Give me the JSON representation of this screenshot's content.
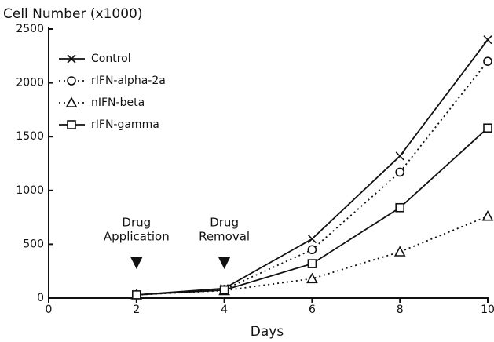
{
  "chart_data": {
    "type": "line",
    "title": "Cell Number (x1000)",
    "x_label": "Days",
    "x": [
      2,
      4,
      6,
      8,
      10
    ],
    "xlim": [
      0,
      10
    ],
    "xticks": [
      0,
      2,
      4,
      6,
      8,
      10
    ],
    "ylim": [
      0,
      2500
    ],
    "yticks": [
      0,
      500,
      1000,
      1500,
      2000,
      2500
    ],
    "grid": false,
    "legend": "upper-left",
    "series": [
      {
        "name": "Control",
        "color": "#111111",
        "marker": "x",
        "dash": "solid",
        "values": [
          30,
          90,
          550,
          1320,
          2400
        ]
      },
      {
        "name": "rIFN-alpha-2a",
        "color": "#111111",
        "marker": "circle",
        "dash": "dotted",
        "values": [
          30,
          80,
          450,
          1170,
          2200
        ]
      },
      {
        "name": "nIFN-beta",
        "color": "#111111",
        "marker": "triangle",
        "dash": "dotted",
        "values": [
          30,
          70,
          180,
          430,
          760
        ]
      },
      {
        "name": "rIFN-gamma",
        "color": "#111111",
        "marker": "square",
        "dash": "solid",
        "values": [
          30,
          75,
          320,
          840,
          1580
        ]
      }
    ],
    "annotations": [
      {
        "text": [
          "Drug",
          "Application"
        ],
        "x": 2
      },
      {
        "text": [
          "Drug",
          "Removal"
        ],
        "x": 4
      }
    ]
  }
}
